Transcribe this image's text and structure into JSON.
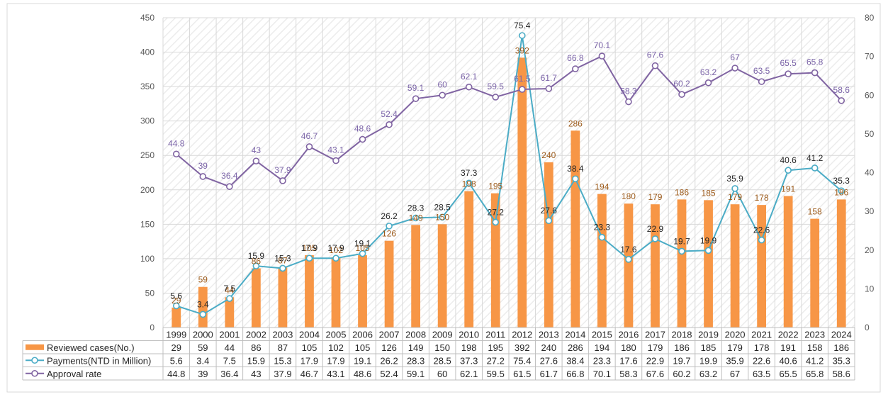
{
  "chart_data": {
    "type": "bar",
    "categories": [
      "1999",
      "2000",
      "2001",
      "2002",
      "2003",
      "2004",
      "2005",
      "2006",
      "2007",
      "2008",
      "2009",
      "2010",
      "2011",
      "2012",
      "2013",
      "2014",
      "2015",
      "2016",
      "2017",
      "2018",
      "2019",
      "2020",
      "2021",
      "2022",
      "2023",
      "2024"
    ],
    "series": [
      {
        "name": "Reviewed cases(No.)",
        "type": "bar",
        "axis": "left",
        "color": "#f79646",
        "values": [
          29,
          59,
          44,
          86,
          87,
          105,
          102,
          105,
          126,
          149,
          150,
          198,
          195,
          392,
          240,
          286,
          194,
          180,
          179,
          186,
          185,
          179,
          178,
          191,
          158,
          186
        ]
      },
      {
        "name": "Payments(NTD in Million)",
        "type": "line",
        "axis": "right",
        "color": "#4bacc6",
        "values": [
          5.6,
          3.4,
          7.5,
          15.9,
          15.3,
          17.9,
          17.9,
          19.1,
          26.2,
          28.3,
          28.5,
          37.3,
          27.2,
          75.4,
          27.6,
          38.4,
          23.3,
          17.6,
          22.9,
          19.7,
          19.9,
          35.9,
          22.6,
          40.6,
          41.2,
          35.3
        ]
      },
      {
        "name": "Approval rate",
        "type": "line",
        "axis": "right",
        "color": "#8064a2",
        "values": [
          44.8,
          39,
          36.4,
          43,
          37.9,
          46.7,
          43.1,
          48.6,
          52.4,
          59.1,
          60,
          62.1,
          59.5,
          61.5,
          61.7,
          66.8,
          70.1,
          58.3,
          67.6,
          60.2,
          63.2,
          67,
          63.5,
          65.5,
          65.8,
          58.6
        ]
      }
    ],
    "y_left": {
      "min": 0,
      "max": 450,
      "ticks": [
        0,
        50,
        100,
        150,
        200,
        250,
        300,
        350,
        400,
        450
      ]
    },
    "y_right": {
      "min": 0,
      "max": 80,
      "ticks": [
        0,
        10,
        20,
        30,
        40,
        50,
        60,
        70,
        80
      ]
    },
    "grid": true,
    "legend": "data-table-bottom"
  }
}
